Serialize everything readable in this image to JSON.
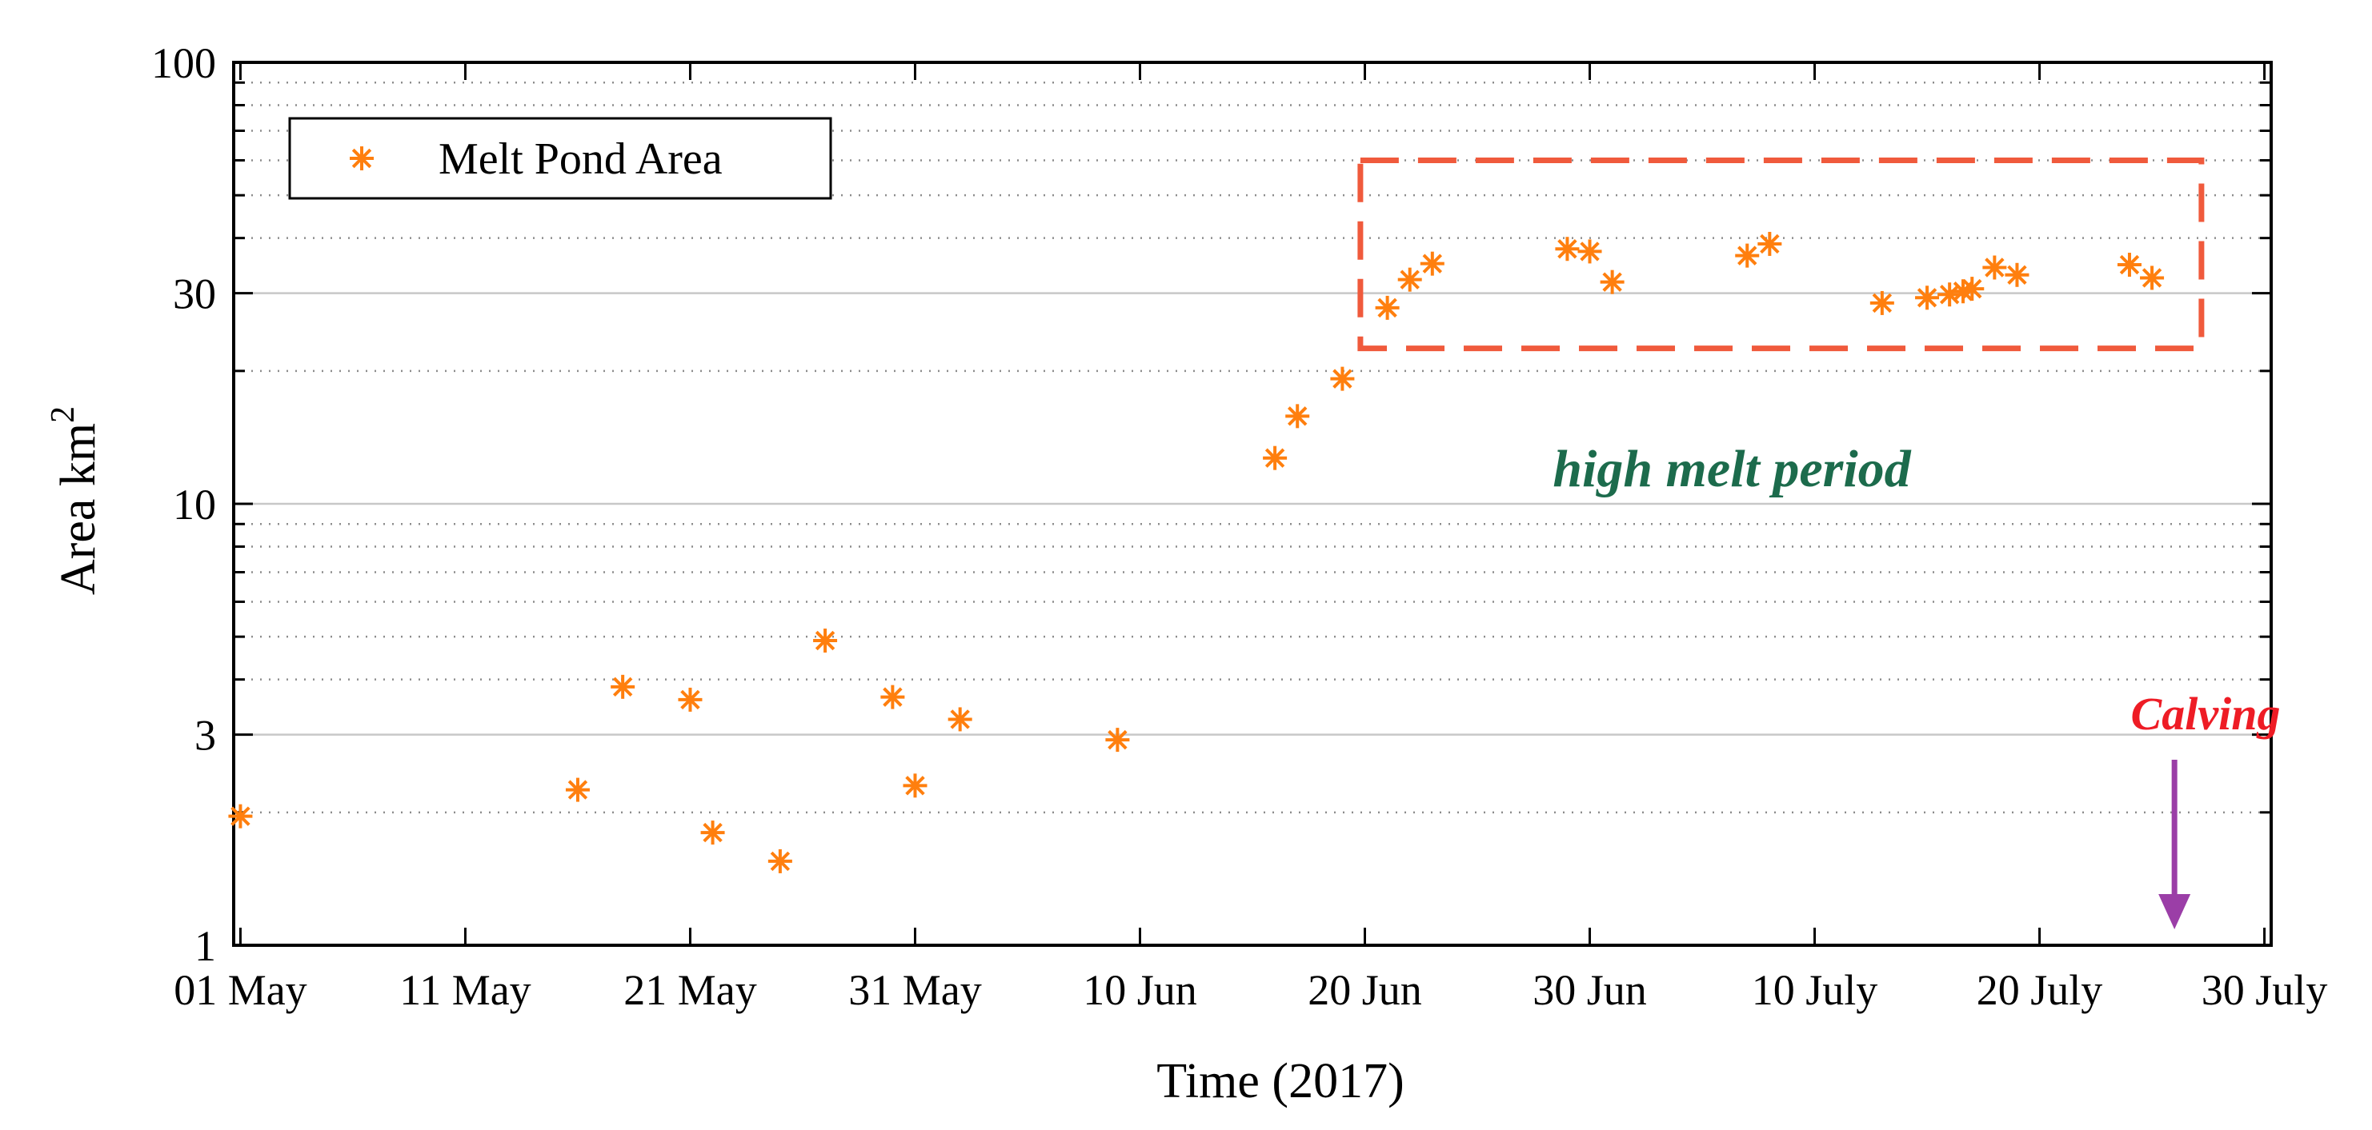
{
  "chart_data": {
    "type": "scatter",
    "title": "",
    "xlabel": "Time (2017)",
    "ylabel": "Area km",
    "ylabel_superscript": "2",
    "yscale": "log",
    "ylim": [
      1,
      100
    ],
    "xlim_days": [
      -0.3,
      90.3
    ],
    "x_origin": "2017-05-01",
    "xticks": [
      {
        "day": 0,
        "label": "01 May"
      },
      {
        "day": 10,
        "label": "11 May"
      },
      {
        "day": 20,
        "label": "21 May"
      },
      {
        "day": 30,
        "label": "31 May"
      },
      {
        "day": 40,
        "label": "10 Jun"
      },
      {
        "day": 50,
        "label": "20 Jun"
      },
      {
        "day": 60,
        "label": "30 Jun"
      },
      {
        "day": 70,
        "label": "10 July"
      },
      {
        "day": 80,
        "label": "20 July"
      },
      {
        "day": 90,
        "label": "30 July"
      }
    ],
    "yticks": [
      {
        "value": 1,
        "label": "1"
      },
      {
        "value": 3,
        "label": "3"
      },
      {
        "value": 10,
        "label": "10"
      },
      {
        "value": 30,
        "label": "30"
      },
      {
        "value": 100,
        "label": "100"
      }
    ],
    "grid": {
      "major": true,
      "minor_dotted": true
    },
    "legend": {
      "entries": [
        "Melt Pond Area"
      ],
      "placement": "top-left"
    },
    "series": [
      {
        "name": "Melt Pond Area",
        "marker": "asterisk",
        "color": "#ff7f0e",
        "points": [
          {
            "day": 0,
            "area": 1.96
          },
          {
            "day": 15,
            "area": 2.25
          },
          {
            "day": 17,
            "area": 3.85
          },
          {
            "day": 20,
            "area": 3.6
          },
          {
            "day": 21,
            "area": 1.8
          },
          {
            "day": 24,
            "area": 1.55
          },
          {
            "day": 26,
            "area": 4.9
          },
          {
            "day": 29,
            "area": 3.65
          },
          {
            "day": 30,
            "area": 2.3
          },
          {
            "day": 32,
            "area": 3.25
          },
          {
            "day": 39,
            "area": 2.92
          },
          {
            "day": 46,
            "area": 12.7
          },
          {
            "day": 47,
            "area": 15.8
          },
          {
            "day": 49,
            "area": 19.2
          },
          {
            "day": 51,
            "area": 27.8
          },
          {
            "day": 52,
            "area": 32.2
          },
          {
            "day": 53,
            "area": 35.0
          },
          {
            "day": 59,
            "area": 37.8
          },
          {
            "day": 60,
            "area": 37.3
          },
          {
            "day": 61,
            "area": 31.8
          },
          {
            "day": 67,
            "area": 36.5
          },
          {
            "day": 68,
            "area": 38.8
          },
          {
            "day": 73,
            "area": 28.5
          },
          {
            "day": 75,
            "area": 29.3
          },
          {
            "day": 76,
            "area": 29.8
          },
          {
            "day": 76.6,
            "area": 30.3
          },
          {
            "day": 77,
            "area": 30.7
          },
          {
            "day": 78,
            "area": 34.3
          },
          {
            "day": 79,
            "area": 33.0
          },
          {
            "day": 84,
            "area": 34.8
          },
          {
            "day": 85,
            "area": 32.5
          }
        ]
      }
    ],
    "annotations": {
      "high_melt_label": "high melt period",
      "high_melt_color": "#1c6b4c",
      "high_melt_box": {
        "day_start": 49.8,
        "day_end": 87.2,
        "area_low": 22.5,
        "area_high": 60.0
      },
      "box_color": "#f05a3c",
      "calving_label": "Calving",
      "calving_color": "#ee1c25",
      "calving_arrow_day": 86,
      "arrow_color": "#9b3ea7"
    }
  }
}
